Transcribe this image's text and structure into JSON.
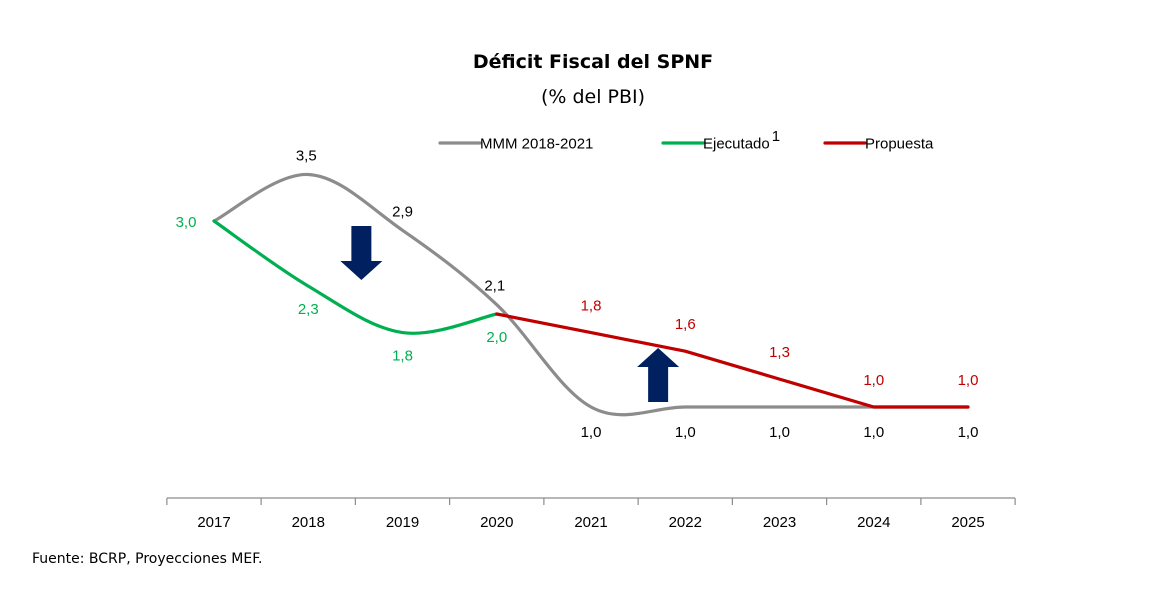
{
  "chart_data": {
    "type": "line",
    "title": "Déficit Fiscal del SPNF",
    "subtitle": "(% del PBI)",
    "categories": [
      "2017",
      "2018",
      "2019",
      "2020",
      "2021",
      "2022",
      "2023",
      "2024",
      "2025"
    ],
    "ylim": [
      0,
      4
    ],
    "grid": false,
    "legend_position": "top",
    "smoothed": true,
    "series": [
      {
        "name": "MMM 2018-2021",
        "color": "#8C8C8C",
        "label_color": "#000000",
        "x": [
          "2017",
          "2018",
          "2019",
          "2020",
          "2021",
          "2022",
          "2023",
          "2024",
          "2025"
        ],
        "values": [
          3.0,
          3.5,
          2.9,
          2.1,
          1.0,
          1.0,
          1.0,
          1.0,
          1.0
        ],
        "data_labels": [
          "",
          "3,5",
          "2,9",
          "2,1",
          "1,0",
          "1,0",
          "1,0",
          "1,0",
          "1,0"
        ]
      },
      {
        "name": "Ejecutado",
        "name_superscript": "1",
        "color": "#00B050",
        "label_color": "#00B050",
        "x": [
          "2017",
          "2018",
          "2019",
          "2020"
        ],
        "values": [
          3.0,
          2.3,
          1.8,
          2.0
        ],
        "data_labels": [
          "3,0",
          "2,3",
          "1,8",
          "2,0"
        ]
      },
      {
        "name": "Propuesta",
        "color": "#C00000",
        "label_color": "#C00000",
        "x": [
          "2020",
          "2021",
          "2022",
          "2023",
          "2024",
          "2025"
        ],
        "values": [
          2.0,
          1.8,
          1.6,
          1.3,
          1.0,
          1.0
        ],
        "data_labels": [
          "",
          "1,8",
          "1,6",
          "1,3",
          "1,0",
          "1,0"
        ]
      }
    ],
    "annotations": [
      {
        "type": "arrow-down",
        "color": "#002060",
        "between": [
          "2018",
          "2019"
        ]
      },
      {
        "type": "arrow-up",
        "color": "#002060",
        "between": [
          "2021",
          "2022"
        ]
      }
    ]
  },
  "source": "Fuente: BCRP, Proyecciones MEF."
}
